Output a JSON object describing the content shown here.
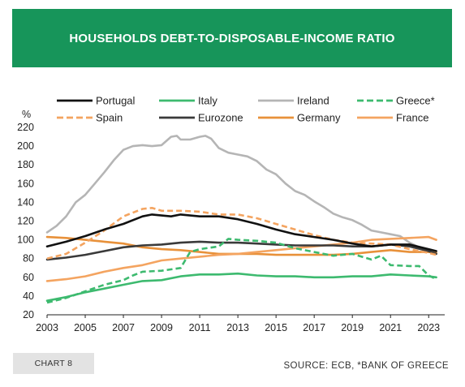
{
  "header": {
    "title": "HOUSEHOLDS DEBT-TO-DISPOSABLE-INCOME RATIO"
  },
  "footer": {
    "chip": "CHART 8",
    "source": "SOURCE: ECB, *BANK OF GREECE"
  },
  "chart_data": {
    "type": "line",
    "ylabel": "%",
    "xlim": [
      2003,
      2023.5
    ],
    "ylim": [
      20,
      220
    ],
    "xticks": [
      2003,
      2005,
      2007,
      2009,
      2011,
      2013,
      2015,
      2017,
      2019,
      2021,
      2023
    ],
    "yticks": [
      20,
      40,
      60,
      80,
      100,
      120,
      140,
      160,
      180,
      200,
      220
    ],
    "grid": false,
    "legend_position": "top",
    "series": [
      {
        "name": "Portugal",
        "color": "#111111",
        "dash": false,
        "points": [
          [
            2003,
            93
          ],
          [
            2004,
            98
          ],
          [
            2005,
            104
          ],
          [
            2006,
            111
          ],
          [
            2007,
            117
          ],
          [
            2008,
            125
          ],
          [
            2008.5,
            127
          ],
          [
            2009,
            126
          ],
          [
            2009.5,
            125
          ],
          [
            2010,
            127
          ],
          [
            2011,
            125
          ],
          [
            2012,
            125
          ],
          [
            2013,
            122
          ],
          [
            2014,
            117
          ],
          [
            2015,
            111
          ],
          [
            2016,
            106
          ],
          [
            2017,
            103
          ],
          [
            2018,
            100
          ],
          [
            2019,
            96
          ],
          [
            2020,
            93
          ],
          [
            2021,
            95
          ],
          [
            2022,
            95
          ],
          [
            2023,
            90
          ],
          [
            2023.4,
            88
          ]
        ]
      },
      {
        "name": "Italy",
        "color": "#3dba6f",
        "dash": false,
        "points": [
          [
            2003,
            35
          ],
          [
            2004,
            39
          ],
          [
            2005,
            44
          ],
          [
            2006,
            48
          ],
          [
            2007,
            52
          ],
          [
            2008,
            56
          ],
          [
            2009,
            57
          ],
          [
            2010,
            61
          ],
          [
            2011,
            63
          ],
          [
            2012,
            63
          ],
          [
            2013,
            64
          ],
          [
            2014,
            62
          ],
          [
            2015,
            61
          ],
          [
            2016,
            61
          ],
          [
            2017,
            60
          ],
          [
            2018,
            60
          ],
          [
            2019,
            61
          ],
          [
            2020,
            61
          ],
          [
            2021,
            63
          ],
          [
            2022,
            62
          ],
          [
            2023,
            61
          ],
          [
            2023.4,
            60
          ]
        ]
      },
      {
        "name": "Ireland",
        "color": "#b5b5b5",
        "dash": false,
        "points": [
          [
            2003,
            108
          ],
          [
            2003.5,
            115
          ],
          [
            2004,
            125
          ],
          [
            2004.5,
            140
          ],
          [
            2005,
            148
          ],
          [
            2005.5,
            160
          ],
          [
            2006,
            172
          ],
          [
            2006.5,
            185
          ],
          [
            2007,
            196
          ],
          [
            2007.5,
            200
          ],
          [
            2008,
            201
          ],
          [
            2008.5,
            200
          ],
          [
            2009,
            201
          ],
          [
            2009.5,
            210
          ],
          [
            2009.8,
            211
          ],
          [
            2010,
            207
          ],
          [
            2010.5,
            207
          ],
          [
            2011,
            210
          ],
          [
            2011.3,
            211
          ],
          [
            2011.6,
            208
          ],
          [
            2012,
            198
          ],
          [
            2012.5,
            193
          ],
          [
            2013,
            191
          ],
          [
            2013.5,
            189
          ],
          [
            2014,
            184
          ],
          [
            2014.5,
            175
          ],
          [
            2015,
            170
          ],
          [
            2015.5,
            160
          ],
          [
            2016,
            152
          ],
          [
            2016.5,
            148
          ],
          [
            2017,
            141
          ],
          [
            2017.5,
            135
          ],
          [
            2018,
            128
          ],
          [
            2018.5,
            124
          ],
          [
            2019,
            121
          ],
          [
            2019.5,
            116
          ],
          [
            2020,
            110
          ],
          [
            2020.5,
            108
          ],
          [
            2021,
            106
          ],
          [
            2021.5,
            104
          ],
          [
            2022,
            97
          ],
          [
            2022.5,
            92
          ],
          [
            2022.9,
            88
          ]
        ]
      },
      {
        "name": "Greece*",
        "color": "#3dba6f",
        "dash": true,
        "points": [
          [
            2003,
            33
          ],
          [
            2004,
            38
          ],
          [
            2005,
            45
          ],
          [
            2006,
            52
          ],
          [
            2007,
            57
          ],
          [
            2007.5,
            62
          ],
          [
            2008,
            66
          ],
          [
            2009,
            67
          ],
          [
            2010,
            70
          ],
          [
            2010.5,
            87
          ],
          [
            2011,
            90
          ],
          [
            2012,
            93
          ],
          [
            2012.5,
            101
          ],
          [
            2013,
            100
          ],
          [
            2014,
            99
          ],
          [
            2015,
            97
          ],
          [
            2016,
            91
          ],
          [
            2017,
            87
          ],
          [
            2018,
            83
          ],
          [
            2019,
            85
          ],
          [
            2020,
            79
          ],
          [
            2020.5,
            83
          ],
          [
            2021,
            73
          ],
          [
            2022,
            72
          ],
          [
            2022.5,
            72
          ],
          [
            2023,
            62
          ],
          [
            2023.3,
            59
          ]
        ]
      },
      {
        "name": "Spain",
        "color": "#f4a460",
        "dash": true,
        "points": [
          [
            2003,
            80
          ],
          [
            2004,
            85
          ],
          [
            2005,
            97
          ],
          [
            2006,
            110
          ],
          [
            2007,
            125
          ],
          [
            2008,
            133
          ],
          [
            2008.5,
            134
          ],
          [
            2009,
            131
          ],
          [
            2010,
            131
          ],
          [
            2011,
            130
          ],
          [
            2012,
            127
          ],
          [
            2013,
            127
          ],
          [
            2014,
            123
          ],
          [
            2015,
            117
          ],
          [
            2016,
            111
          ],
          [
            2017,
            105
          ],
          [
            2018,
            100
          ],
          [
            2019,
            97
          ],
          [
            2020,
            96
          ],
          [
            2021,
            95
          ],
          [
            2022,
            90
          ],
          [
            2023,
            86
          ],
          [
            2023.4,
            84
          ]
        ]
      },
      {
        "name": "Eurozone",
        "color": "#3a3a3a",
        "dash": false,
        "points": [
          [
            2003,
            79
          ],
          [
            2004,
            81
          ],
          [
            2005,
            84
          ],
          [
            2006,
            88
          ],
          [
            2007,
            92
          ],
          [
            2008,
            94
          ],
          [
            2009,
            95
          ],
          [
            2010,
            97
          ],
          [
            2011,
            98
          ],
          [
            2012,
            97
          ],
          [
            2013,
            97
          ],
          [
            2014,
            96
          ],
          [
            2015,
            95
          ],
          [
            2016,
            94
          ],
          [
            2017,
            94
          ],
          [
            2018,
            94
          ],
          [
            2019,
            93
          ],
          [
            2020,
            93
          ],
          [
            2021,
            95
          ],
          [
            2022,
            93
          ],
          [
            2023,
            88
          ],
          [
            2023.4,
            85
          ]
        ]
      },
      {
        "name": "Germany",
        "color": "#e8913a",
        "dash": false,
        "points": [
          [
            2003,
            103
          ],
          [
            2004,
            102
          ],
          [
            2005,
            100
          ],
          [
            2006,
            98
          ],
          [
            2007,
            96
          ],
          [
            2008,
            92
          ],
          [
            2009,
            90
          ],
          [
            2010,
            89
          ],
          [
            2011,
            87
          ],
          [
            2012,
            85
          ],
          [
            2013,
            85
          ],
          [
            2014,
            85
          ],
          [
            2015,
            84
          ],
          [
            2016,
            84
          ],
          [
            2017,
            84
          ],
          [
            2018,
            84
          ],
          [
            2019,
            85
          ],
          [
            2020,
            87
          ],
          [
            2021,
            89
          ],
          [
            2022,
            87
          ],
          [
            2023,
            87
          ],
          [
            2023.4,
            86
          ]
        ]
      },
      {
        "name": "France",
        "color": "#f4a460",
        "dash": false,
        "points": [
          [
            2003,
            56
          ],
          [
            2004,
            58
          ],
          [
            2005,
            61
          ],
          [
            2006,
            66
          ],
          [
            2007,
            70
          ],
          [
            2008,
            73
          ],
          [
            2009,
            78
          ],
          [
            2010,
            80
          ],
          [
            2011,
            82
          ],
          [
            2012,
            84
          ],
          [
            2013,
            85
          ],
          [
            2014,
            87
          ],
          [
            2015,
            89
          ],
          [
            2016,
            91
          ],
          [
            2017,
            93
          ],
          [
            2018,
            95
          ],
          [
            2019,
            97
          ],
          [
            2020,
            100
          ],
          [
            2021,
            101
          ],
          [
            2022,
            102
          ],
          [
            2023,
            103
          ],
          [
            2023.4,
            100
          ]
        ]
      }
    ]
  }
}
